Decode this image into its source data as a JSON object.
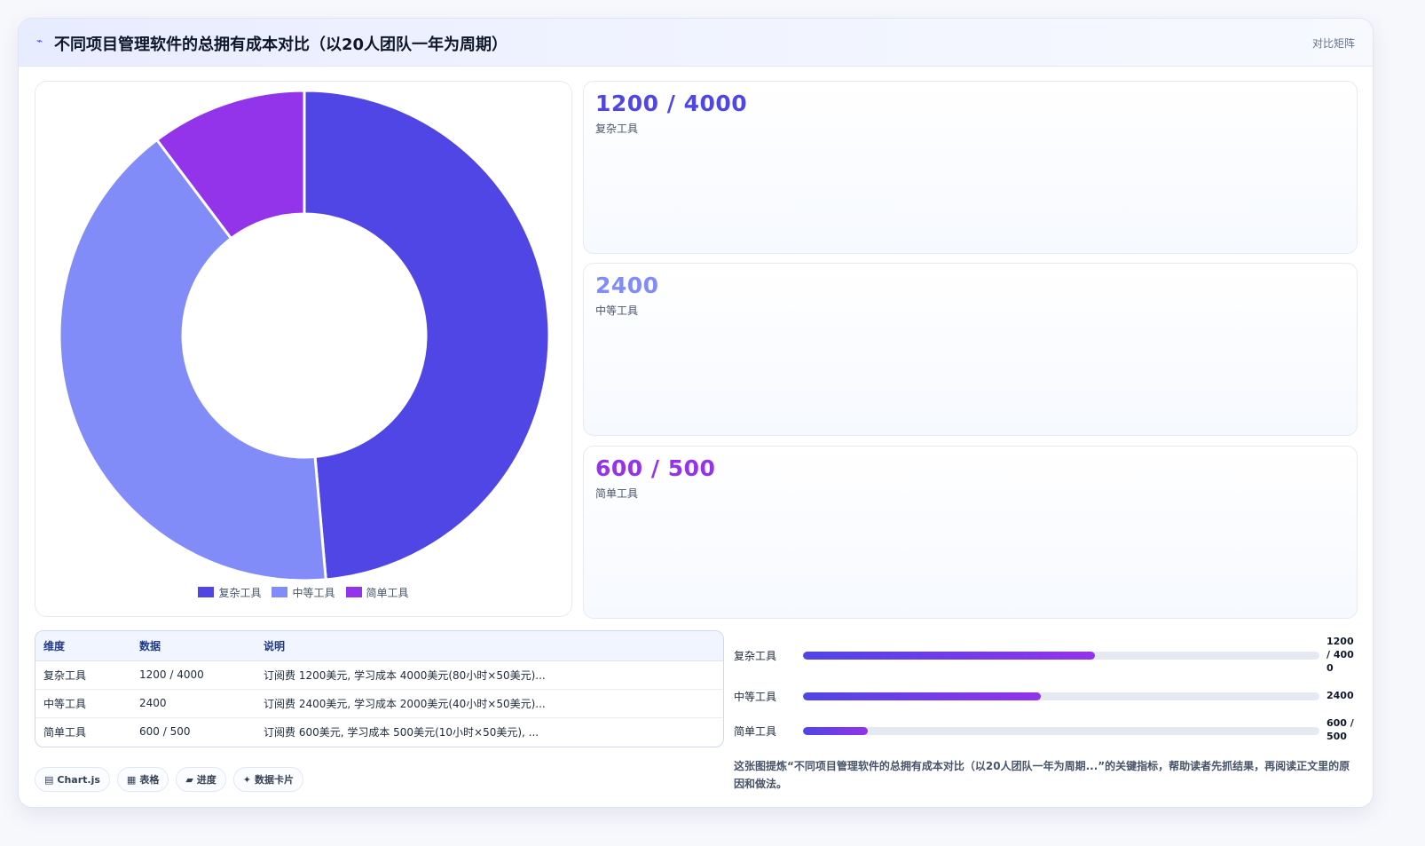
{
  "header": {
    "icon": "sparkline-icon",
    "title": "不同项目管理软件的总拥有成本对比（以20人团队一年为周期）",
    "link_label": "对比矩阵"
  },
  "chart_data": {
    "type": "pie",
    "categories": [
      "复杂工具",
      "中等工具",
      "简单工具"
    ],
    "values": [
      5200,
      4400,
      1100
    ],
    "colors": [
      "#4f46e5",
      "#818cf8",
      "#9333ea"
    ],
    "title": "",
    "legend": "bottom"
  },
  "stats": [
    {
      "value": "1200 / 4000",
      "label": "复杂工具",
      "color": "#4f46e5"
    },
    {
      "value": "2400",
      "label": "中等工具",
      "color": "#818cf8"
    },
    {
      "value": "600 / 500",
      "label": "简单工具",
      "color": "#9333ea"
    }
  ],
  "table": {
    "headers": [
      "维度",
      "数据",
      "说明"
    ],
    "rows": [
      [
        "复杂工具",
        "1200 / 4000",
        "订阅费 1200美元, 学习成本 4000美元(80小时×50美元)..."
      ],
      [
        "中等工具",
        "2400",
        "订阅费 2400美元, 学习成本 2000美元(40小时×50美元)..."
      ],
      [
        "简单工具",
        "600 / 500",
        "订阅费 600美元, 学习成本 500美元(10小时×50美元), ..."
      ]
    ]
  },
  "chips": [
    {
      "icon": "chart-icon",
      "glyph": "▤",
      "label": "Chart.js"
    },
    {
      "icon": "table-icon",
      "glyph": "▦",
      "label": "表格"
    },
    {
      "icon": "progress-icon",
      "glyph": "▰",
      "label": "进度"
    },
    {
      "icon": "card-icon",
      "glyph": "✦",
      "label": "数据卡片"
    }
  ],
  "bars": [
    {
      "label": "复杂工具",
      "value": "1200 / 4000",
      "fraction": 0.565
    },
    {
      "label": "中等工具",
      "value": "2400",
      "fraction": 0.46
    },
    {
      "label": "简单工具",
      "value": "600 / 500",
      "fraction": 0.125
    }
  ],
  "note": "这张图提炼“不同项目管理软件的总拥有成本对比（以20人团队一年为周期...”的关键指标，帮助读者先抓结果，再阅读正文里的原因和做法。"
}
